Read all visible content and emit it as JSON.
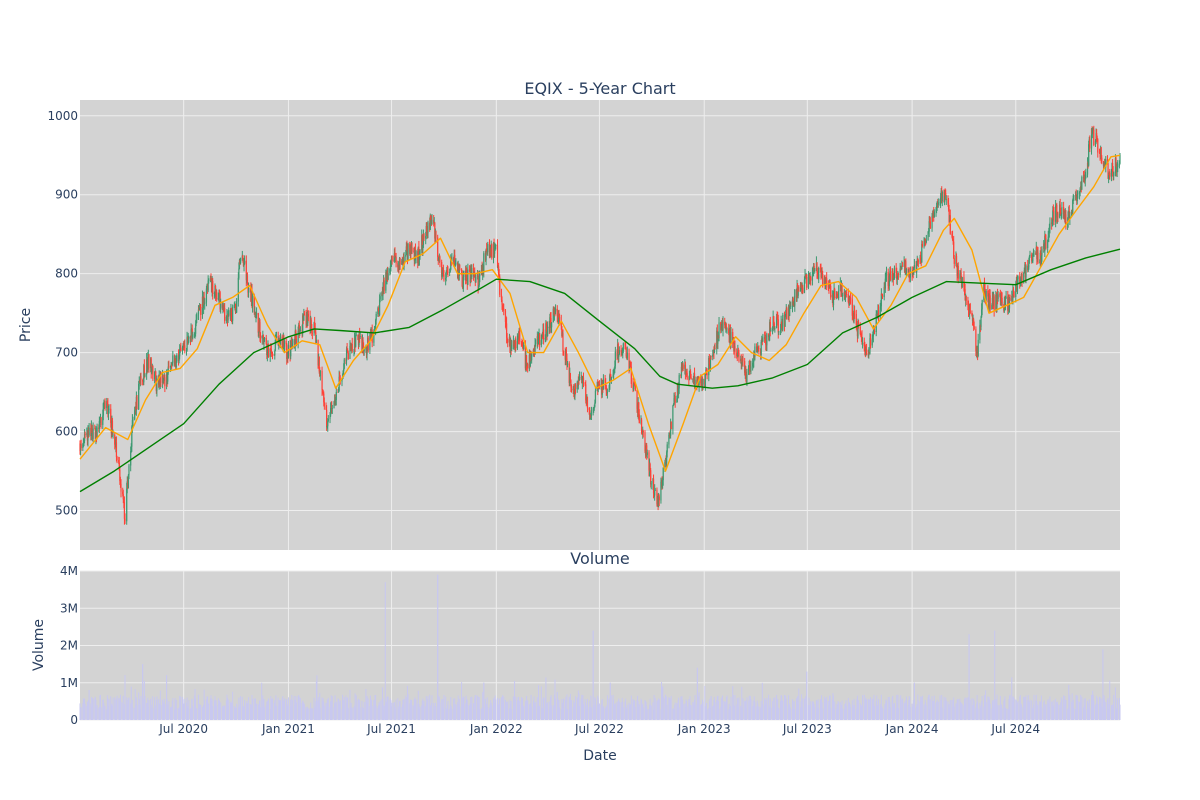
{
  "colors": {
    "plot_bg": "#d3d3d3",
    "grid": "#eeeeee",
    "increasing": "#3d9970",
    "decreasing": "#ff4136",
    "ma_short": "#ffa500",
    "ma_long": "#008000",
    "volume": "#c8c8f0"
  },
  "chart_data": [
    {
      "type": "candlestick",
      "title": "EQIX - 5-Year Chart",
      "ylabel": "Price",
      "xlim": [
        "2020-01-01",
        "2024-12-31"
      ],
      "ylim": [
        450,
        1020
      ],
      "ytick_values": [
        500,
        600,
        700,
        800,
        900,
        1000
      ],
      "ytick_labels": [
        "500",
        "600",
        "700",
        "800",
        "900",
        "1000"
      ],
      "grid": true,
      "price_path": [
        [
          "2020-01-01",
          585
        ],
        [
          "2020-01-15",
          595
        ],
        [
          "2020-02-01",
          600
        ],
        [
          "2020-02-15",
          640
        ],
        [
          "2020-03-01",
          590
        ],
        [
          "2020-03-12",
          540
        ],
        [
          "2020-03-20",
          490
        ],
        [
          "2020-04-01",
          600
        ],
        [
          "2020-04-15",
          660
        ],
        [
          "2020-05-01",
          690
        ],
        [
          "2020-05-15",
          660
        ],
        [
          "2020-06-01",
          670
        ],
        [
          "2020-06-15",
          690
        ],
        [
          "2020-07-01",
          700
        ],
        [
          "2020-07-15",
          720
        ],
        [
          "2020-08-01",
          760
        ],
        [
          "2020-08-15",
          790
        ],
        [
          "2020-09-01",
          770
        ],
        [
          "2020-09-15",
          740
        ],
        [
          "2020-10-01",
          760
        ],
        [
          "2020-10-10",
          830
        ],
        [
          "2020-10-20",
          790
        ],
        [
          "2020-11-01",
          760
        ],
        [
          "2020-11-10",
          730
        ],
        [
          "2020-11-20",
          710
        ],
        [
          "2020-12-01",
          700
        ],
        [
          "2020-12-15",
          715
        ],
        [
          "2021-01-01",
          700
        ],
        [
          "2021-01-15",
          720
        ],
        [
          "2021-02-01",
          745
        ],
        [
          "2021-02-15",
          730
        ],
        [
          "2021-03-01",
          660
        ],
        [
          "2021-03-10",
          610
        ],
        [
          "2021-03-25",
          650
        ],
        [
          "2021-04-10",
          690
        ],
        [
          "2021-05-01",
          720
        ],
        [
          "2021-05-15",
          700
        ],
        [
          "2021-06-01",
          730
        ],
        [
          "2021-06-15",
          780
        ],
        [
          "2021-07-01",
          820
        ],
        [
          "2021-07-15",
          810
        ],
        [
          "2021-08-01",
          830
        ],
        [
          "2021-08-15",
          820
        ],
        [
          "2021-09-01",
          860
        ],
        [
          "2021-09-10",
          870
        ],
        [
          "2021-09-20",
          830
        ],
        [
          "2021-10-01",
          790
        ],
        [
          "2021-10-15",
          820
        ],
        [
          "2021-11-01",
          790
        ],
        [
          "2021-11-15",
          800
        ],
        [
          "2021-12-01",
          790
        ],
        [
          "2021-12-15",
          830
        ],
        [
          "2022-01-01",
          830
        ],
        [
          "2022-01-10",
          760
        ],
        [
          "2022-01-25",
          710
        ],
        [
          "2022-02-10",
          720
        ],
        [
          "2022-02-25",
          680
        ],
        [
          "2022-03-10",
          710
        ],
        [
          "2022-04-01",
          730
        ],
        [
          "2022-04-15",
          760
        ],
        [
          "2022-05-01",
          700
        ],
        [
          "2022-05-15",
          650
        ],
        [
          "2022-06-01",
          670
        ],
        [
          "2022-06-15",
          620
        ],
        [
          "2022-07-01",
          660
        ],
        [
          "2022-07-15",
          650
        ],
        [
          "2022-08-01",
          700
        ],
        [
          "2022-08-15",
          710
        ],
        [
          "2022-09-01",
          650
        ],
        [
          "2022-09-15",
          600
        ],
        [
          "2022-09-30",
          540
        ],
        [
          "2022-10-10",
          510
        ],
        [
          "2022-10-25",
          560
        ],
        [
          "2022-11-10",
          640
        ],
        [
          "2022-11-25",
          680
        ],
        [
          "2022-12-10",
          670
        ],
        [
          "2023-01-01",
          660
        ],
        [
          "2023-01-15",
          700
        ],
        [
          "2023-02-01",
          740
        ],
        [
          "2023-02-15",
          720
        ],
        [
          "2023-03-01",
          700
        ],
        [
          "2023-03-15",
          670
        ],
        [
          "2023-04-01",
          700
        ],
        [
          "2023-04-15",
          710
        ],
        [
          "2023-05-01",
          740
        ],
        [
          "2023-05-15",
          730
        ],
        [
          "2023-06-01",
          760
        ],
        [
          "2023-06-15",
          780
        ],
        [
          "2023-07-01",
          790
        ],
        [
          "2023-07-15",
          810
        ],
        [
          "2023-08-01",
          790
        ],
        [
          "2023-08-15",
          770
        ],
        [
          "2023-09-01",
          780
        ],
        [
          "2023-09-15",
          760
        ],
        [
          "2023-10-01",
          720
        ],
        [
          "2023-10-15",
          700
        ],
        [
          "2023-11-01",
          750
        ],
        [
          "2023-11-15",
          790
        ],
        [
          "2023-12-01",
          800
        ],
        [
          "2023-12-15",
          810
        ],
        [
          "2024-01-01",
          800
        ],
        [
          "2024-01-15",
          820
        ],
        [
          "2024-02-01",
          860
        ],
        [
          "2024-02-15",
          890
        ],
        [
          "2024-03-01",
          900
        ],
        [
          "2024-03-15",
          820
        ],
        [
          "2024-04-01",
          780
        ],
        [
          "2024-04-15",
          740
        ],
        [
          "2024-04-25",
          700
        ],
        [
          "2024-05-05",
          780
        ],
        [
          "2024-05-20",
          760
        ],
        [
          "2024-06-01",
          770
        ],
        [
          "2024-06-15",
          760
        ],
        [
          "2024-07-01",
          780
        ],
        [
          "2024-07-15",
          800
        ],
        [
          "2024-08-01",
          830
        ],
        [
          "2024-08-15",
          820
        ],
        [
          "2024-09-01",
          870
        ],
        [
          "2024-09-15",
          880
        ],
        [
          "2024-10-01",
          870
        ],
        [
          "2024-10-15",
          900
        ],
        [
          "2024-11-01",
          920
        ],
        [
          "2024-11-10",
          980
        ],
        [
          "2024-11-25",
          960
        ],
        [
          "2024-12-10",
          930
        ],
        [
          "2024-12-31",
          940
        ]
      ],
      "ma_short": [
        [
          "2020-01-01",
          565
        ],
        [
          "2020-02-15",
          605
        ],
        [
          "2020-03-25",
          590
        ],
        [
          "2020-04-25",
          640
        ],
        [
          "2020-05-25",
          675
        ],
        [
          "2020-06-25",
          680
        ],
        [
          "2020-07-25",
          705
        ],
        [
          "2020-08-25",
          760
        ],
        [
          "2020-09-25",
          770
        ],
        [
          "2020-10-25",
          785
        ],
        [
          "2020-11-25",
          735
        ],
        [
          "2020-12-25",
          700
        ],
        [
          "2021-01-25",
          715
        ],
        [
          "2021-02-25",
          710
        ],
        [
          "2021-03-25",
          655
        ],
        [
          "2021-04-25",
          690
        ],
        [
          "2021-05-25",
          715
        ],
        [
          "2021-06-25",
          760
        ],
        [
          "2021-07-25",
          815
        ],
        [
          "2021-08-25",
          825
        ],
        [
          "2021-09-25",
          845
        ],
        [
          "2021-10-25",
          800
        ],
        [
          "2021-11-25",
          800
        ],
        [
          "2021-12-25",
          805
        ],
        [
          "2022-01-25",
          775
        ],
        [
          "2022-02-25",
          700
        ],
        [
          "2022-03-25",
          700
        ],
        [
          "2022-04-25",
          740
        ],
        [
          "2022-05-25",
          700
        ],
        [
          "2022-06-25",
          655
        ],
        [
          "2022-07-25",
          665
        ],
        [
          "2022-08-25",
          680
        ],
        [
          "2022-09-25",
          610
        ],
        [
          "2022-10-25",
          550
        ],
        [
          "2022-11-25",
          610
        ],
        [
          "2022-12-25",
          670
        ],
        [
          "2023-01-25",
          685
        ],
        [
          "2023-02-25",
          720
        ],
        [
          "2023-03-25",
          700
        ],
        [
          "2023-04-25",
          690
        ],
        [
          "2023-05-25",
          710
        ],
        [
          "2023-06-25",
          750
        ],
        [
          "2023-07-25",
          785
        ],
        [
          "2023-08-25",
          790
        ],
        [
          "2023-09-25",
          770
        ],
        [
          "2023-10-25",
          730
        ],
        [
          "2023-11-25",
          760
        ],
        [
          "2023-12-25",
          800
        ],
        [
          "2024-01-25",
          810
        ],
        [
          "2024-02-25",
          855
        ],
        [
          "2024-03-15",
          870
        ],
        [
          "2024-04-15",
          830
        ],
        [
          "2024-05-15",
          750
        ],
        [
          "2024-06-15",
          760
        ],
        [
          "2024-07-15",
          770
        ],
        [
          "2024-08-15",
          810
        ],
        [
          "2024-09-15",
          850
        ],
        [
          "2024-10-15",
          880
        ],
        [
          "2024-11-15",
          910
        ],
        [
          "2024-12-15",
          948
        ],
        [
          "2024-12-31",
          950
        ]
      ],
      "ma_long": [
        [
          "2020-01-01",
          524
        ],
        [
          "2020-03-01",
          550
        ],
        [
          "2020-05-01",
          580
        ],
        [
          "2020-07-01",
          610
        ],
        [
          "2020-09-01",
          660
        ],
        [
          "2020-11-01",
          700
        ],
        [
          "2021-01-01",
          720
        ],
        [
          "2021-02-15",
          730
        ],
        [
          "2021-04-01",
          728
        ],
        [
          "2021-06-01",
          725
        ],
        [
          "2021-08-01",
          732
        ],
        [
          "2021-10-01",
          755
        ],
        [
          "2021-12-01",
          780
        ],
        [
          "2022-01-01",
          793
        ],
        [
          "2022-03-01",
          790
        ],
        [
          "2022-05-01",
          775
        ],
        [
          "2022-07-01",
          740
        ],
        [
          "2022-09-01",
          705
        ],
        [
          "2022-10-15",
          670
        ],
        [
          "2022-11-15",
          660
        ],
        [
          "2023-01-15",
          655
        ],
        [
          "2023-03-01",
          658
        ],
        [
          "2023-05-01",
          668
        ],
        [
          "2023-07-01",
          685
        ],
        [
          "2023-09-01",
          725
        ],
        [
          "2023-11-01",
          745
        ],
        [
          "2024-01-01",
          770
        ],
        [
          "2024-03-01",
          790
        ],
        [
          "2024-05-01",
          788
        ],
        [
          "2024-07-01",
          786
        ],
        [
          "2024-09-01",
          805
        ],
        [
          "2024-11-01",
          820
        ],
        [
          "2024-12-31",
          831
        ]
      ]
    },
    {
      "type": "bar",
      "title": "Volume",
      "xlabel": "Date",
      "ylabel": "Volume",
      "ylim": [
        0,
        4000000
      ],
      "ytick_values": [
        0,
        1000000,
        2000000,
        3000000,
        4000000
      ],
      "ytick_labels": [
        "0",
        "1M",
        "2M",
        "3M",
        "4M"
      ],
      "xtick_dates": [
        "2020-07-01",
        "2021-01-01",
        "2021-07-01",
        "2022-01-01",
        "2022-07-01",
        "2023-01-01",
        "2023-07-01",
        "2024-01-01",
        "2024-07-01"
      ],
      "xtick_labels": [
        "Jul 2020",
        "Jan 2021",
        "Jul 2021",
        "Jan 2022",
        "Jul 2022",
        "Jan 2023",
        "Jul 2023",
        "Jan 2024",
        "Jul 2024"
      ],
      "spikes": [
        [
          "2020-03-20",
          1200000
        ],
        [
          "2020-04-20",
          1500000
        ],
        [
          "2020-06-01",
          1200000
        ],
        [
          "2020-11-15",
          1000000
        ],
        [
          "2021-02-20",
          1200000
        ],
        [
          "2021-06-20",
          3700000
        ],
        [
          "2021-09-20",
          3900000
        ],
        [
          "2021-12-10",
          1000000
        ],
        [
          "2022-06-20",
          2400000
        ],
        [
          "2022-07-20",
          1000000
        ],
        [
          "2022-10-20",
          900000
        ],
        [
          "2022-12-20",
          1400000
        ],
        [
          "2023-06-30",
          1300000
        ],
        [
          "2024-01-05",
          1000000
        ],
        [
          "2024-04-10",
          2300000
        ],
        [
          "2024-05-25",
          2400000
        ],
        [
          "2024-12-01",
          1900000
        ]
      ]
    }
  ]
}
